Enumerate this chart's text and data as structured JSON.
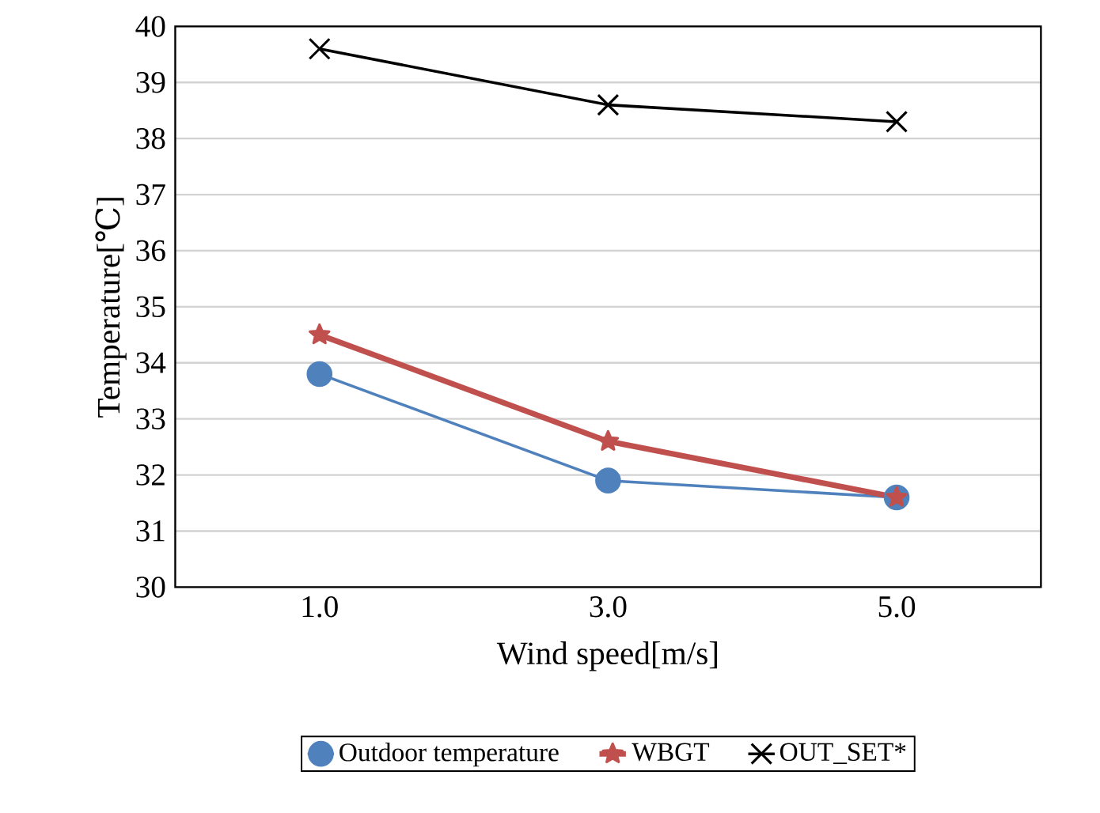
{
  "chart_data": {
    "type": "line",
    "xlabel": "Wind speed[m/s]",
    "ylabel": "Temperature[℃]",
    "categories": [
      "1.0",
      "3.0",
      "5.0"
    ],
    "series": [
      {
        "name": "Outdoor temperature",
        "color": "#4f81bd",
        "marker": "circle",
        "values": [
          33.8,
          31.9,
          31.6
        ]
      },
      {
        "name": "WBGT",
        "color": "#c0504d",
        "marker": "star",
        "values": [
          34.5,
          32.6,
          31.6
        ]
      },
      {
        "name": "OUT_SET*",
        "color": "#000000",
        "marker": "cross",
        "values": [
          39.6,
          38.6,
          38.3
        ]
      }
    ],
    "ylim": [
      30,
      40
    ],
    "yticks": [
      30,
      31,
      32,
      33,
      34,
      35,
      36,
      37,
      38,
      39,
      40
    ],
    "grid": "y",
    "legend": "bottom"
  }
}
